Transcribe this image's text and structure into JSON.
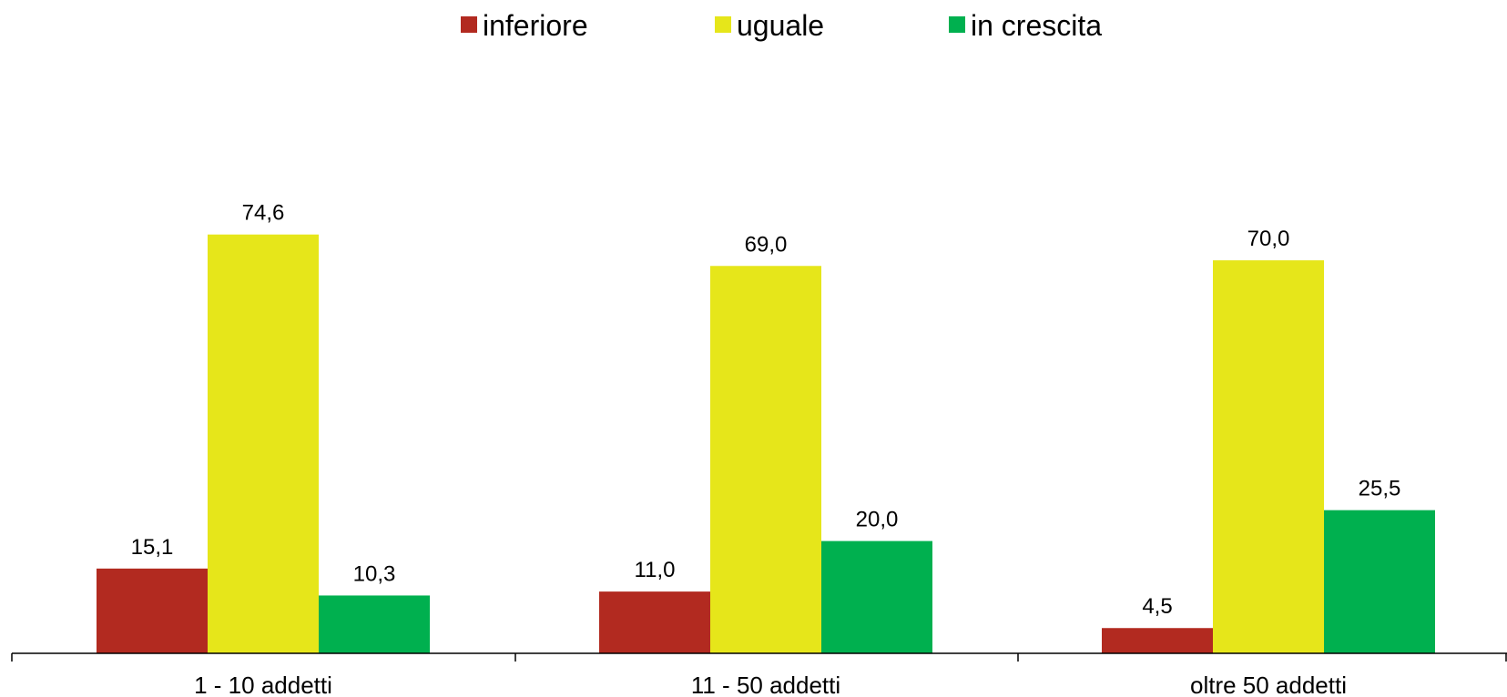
{
  "chart_data": {
    "type": "bar",
    "title": "",
    "xlabel": "",
    "ylabel": "",
    "categories": [
      "1 - 10 addetti",
      "11 - 50 addetti",
      "oltre 50 addetti"
    ],
    "series": [
      {
        "name": "inferiore",
        "color": "#b22a20",
        "values": [
          15.1,
          11.0,
          4.5
        ],
        "labels": [
          "15,1",
          "11,0",
          "4,5"
        ]
      },
      {
        "name": "uguale",
        "color": "#e6e61a",
        "values": [
          74.6,
          69.0,
          70.0
        ],
        "labels": [
          "74,6",
          "69,0",
          "70,0"
        ]
      },
      {
        "name": "in crescita",
        "color": "#00b04f",
        "values": [
          10.3,
          20.0,
          25.5
        ],
        "labels": [
          "10,3",
          "20,0",
          "25,5"
        ]
      }
    ],
    "ylim": [
      0,
      100
    ],
    "grid": false,
    "y_axis_visible": false,
    "legend_position": "top-center"
  }
}
